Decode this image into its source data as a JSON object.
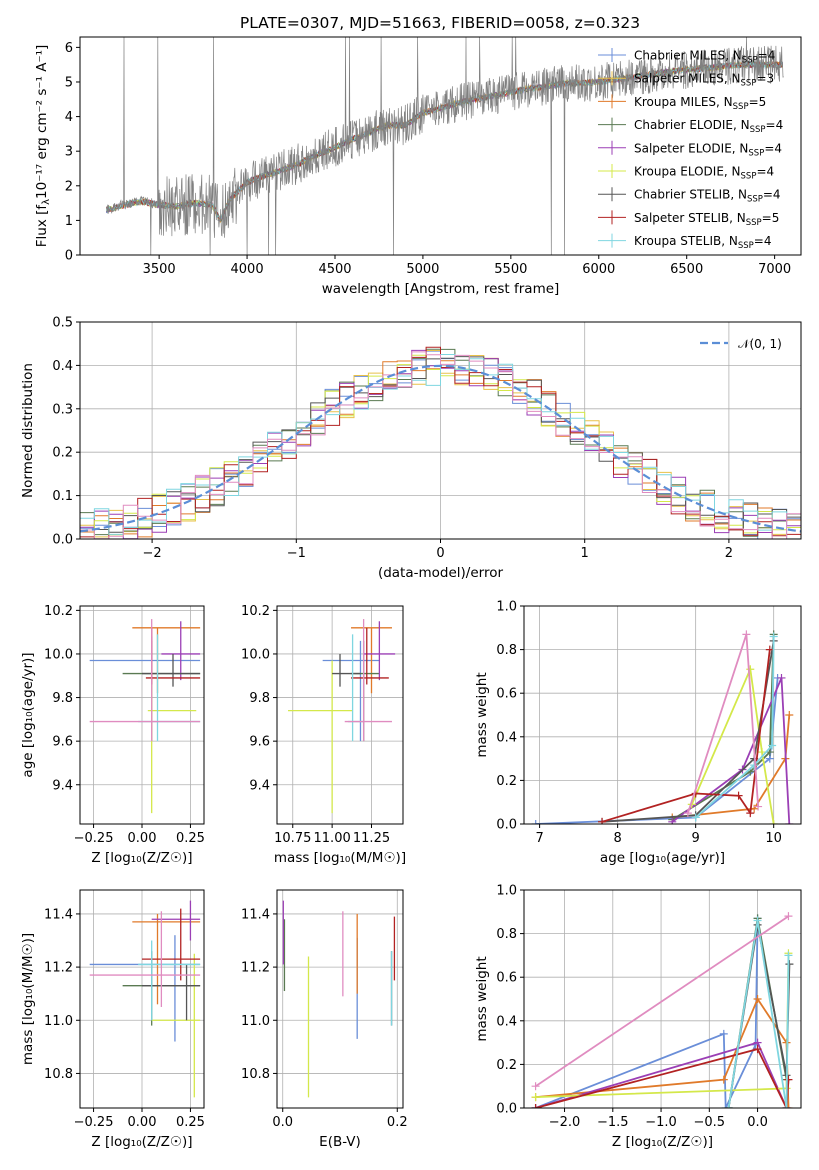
{
  "figure": {
    "title": "PLATE=0307, MJD=51663, FIBERID=0058, z=0.323"
  },
  "legend_entries": [
    {
      "name": "Chabrier MILES, N",
      "sub": "SSP",
      "suffix": "=4",
      "color": "#6a8ed8"
    },
    {
      "name": "Salpeter MILES, N",
      "sub": "SSP",
      "suffix": "=3",
      "color": "#e8c14a"
    },
    {
      "name": "Kroupa MILES, N",
      "sub": "SSP",
      "suffix": "=5",
      "color": "#e07a2a"
    },
    {
      "name": "Chabrier ELODIE, N",
      "sub": "SSP",
      "suffix": "=4",
      "color": "#5a7a52"
    },
    {
      "name": "Salpeter ELODIE, N",
      "sub": "SSP",
      "suffix": "=4",
      "color": "#9b3fb5"
    },
    {
      "name": "Kroupa ELODIE, N",
      "sub": "SSP",
      "suffix": "=4",
      "color": "#d4e84a"
    },
    {
      "name": "Chabrier STELIB, N",
      "sub": "SSP",
      "suffix": "=4",
      "color": "#555555"
    },
    {
      "name": "Salpeter STELIB, N",
      "sub": "SSP",
      "suffix": "=5",
      "color": "#b22222"
    },
    {
      "name": "Kroupa STELIB, N",
      "sub": "SSP",
      "suffix": "=4",
      "color": "#7fd6e0"
    }
  ],
  "colors": {
    "grid": "#b0b0b0",
    "spectrum_data": "#808080",
    "pink": "#e08cc0",
    "gaussian": "#5b8ed6"
  },
  "chart_data": [
    {
      "id": "spectrum",
      "type": "line",
      "title": "PLATE=0307, MJD=51663, FIBERID=0058, z=0.323",
      "xlabel": "wavelength [Angstrom, rest frame]",
      "ylabel_main": "Flux [f",
      "ylabel_sub": "λ",
      "ylabel_rest": "10⁻¹⁷ erg cm⁻² s⁻¹ A⁻¹]",
      "xlim": [
        3050,
        7150
      ],
      "ylim": [
        0,
        6.3
      ],
      "xticks": [
        3500,
        4000,
        4500,
        5000,
        5500,
        6000,
        6500,
        7000
      ],
      "yticks": [
        0,
        1,
        2,
        3,
        4,
        5,
        6
      ],
      "continuum_x": [
        3200,
        3300,
        3400,
        3500,
        3600,
        3700,
        3800,
        3850,
        3900,
        4000,
        4100,
        4200,
        4300,
        4400,
        4500,
        4600,
        4700,
        4800,
        4900,
        5000,
        5200,
        5400,
        5600,
        5800,
        6000,
        6200,
        6400,
        6600,
        6800,
        7000
      ],
      "continuum_y": [
        1.3,
        1.45,
        1.55,
        1.45,
        1.4,
        1.5,
        1.45,
        1.0,
        1.6,
        2.1,
        2.3,
        2.45,
        2.65,
        2.9,
        3.1,
        3.35,
        3.55,
        3.75,
        3.75,
        4.1,
        4.4,
        4.6,
        4.8,
        4.95,
        5.0,
        5.15,
        5.3,
        5.4,
        5.5,
        5.5
      ],
      "data_xrange": [
        3200,
        7050
      ],
      "grid": false
    },
    {
      "id": "residuals",
      "type": "histogram",
      "xlabel": "(data-model)/error",
      "ylabel": "Normed distribution",
      "xlim": [
        -2.5,
        2.5
      ],
      "ylim": [
        0,
        0.5
      ],
      "xticks": [
        -2,
        -1,
        0,
        1,
        2
      ],
      "xticklabels": [
        "−2",
        "−1",
        "0",
        "1",
        "2"
      ],
      "yticks": [
        0.0,
        0.1,
        0.2,
        0.3,
        0.4,
        0.5
      ],
      "yticklabels": [
        "0.0",
        "0.1",
        "0.2",
        "0.3",
        "0.4",
        "0.5"
      ],
      "legend_label": "𝒩(0, 1)",
      "bin_width": 0.1,
      "grid": true
    },
    {
      "id": "z-age",
      "type": "errorbar",
      "xlabel": "Z [log₁₀(Z/Z☉)]",
      "ylabel": "age  [log₁₀(age/yr)]",
      "xlim": [
        -0.32,
        0.32
      ],
      "ylim": [
        9.22,
        10.22
      ],
      "xticks": [
        -0.25,
        0.0,
        0.25
      ],
      "xticklabels": [
        "−0.25",
        "0.00",
        "0.25"
      ],
      "yticks": [
        9.4,
        9.6,
        9.8,
        10.0,
        10.2
      ],
      "yticklabels": [
        "9.4",
        "9.6",
        "9.8",
        "10.0",
        "10.2"
      ],
      "grid": true,
      "points": [
        {
          "x": 0.05,
          "xlo": -0.27,
          "xhi": 0.3,
          "y": 9.97,
          "ylo": 9.6,
          "yhi": 10.08,
          "c": "#6a8ed8"
        },
        {
          "x": 0.08,
          "xlo": -0.05,
          "xhi": 0.3,
          "y": 10.12,
          "ylo": 9.82,
          "yhi": 10.12,
          "c": "#e07a2a"
        },
        {
          "x": 0.05,
          "xlo": -0.1,
          "xhi": 0.3,
          "y": 9.91,
          "ylo": 9.6,
          "yhi": 10.06,
          "c": "#5a7a52"
        },
        {
          "x": 0.2,
          "xlo": 0.1,
          "xhi": 0.3,
          "y": 10.0,
          "ylo": 9.88,
          "yhi": 10.15,
          "c": "#9b3fb5"
        },
        {
          "x": 0.05,
          "xlo": 0.03,
          "xhi": 0.28,
          "y": 9.74,
          "ylo": 9.27,
          "yhi": 9.97,
          "c": "#d4e84a"
        },
        {
          "x": 0.16,
          "xlo": 0.0,
          "xhi": 0.3,
          "y": 9.91,
          "ylo": 9.85,
          "yhi": 10.0,
          "c": "#555555"
        },
        {
          "x": 0.05,
          "xlo": 0.02,
          "xhi": 0.3,
          "y": 9.89,
          "ylo": 9.86,
          "yhi": 10.12,
          "c": "#b22222"
        },
        {
          "x": 0.08,
          "xlo": -0.02,
          "xhi": 0.3,
          "y": 9.69,
          "ylo": 9.6,
          "yhi": 10.09,
          "c": "#7fd6e0"
        },
        {
          "x": 0.05,
          "xlo": -0.27,
          "xhi": 0.3,
          "y": 9.69,
          "ylo": 9.6,
          "yhi": 10.16,
          "c": "#e08cc0"
        }
      ]
    },
    {
      "id": "mass-age",
      "type": "errorbar",
      "xlabel": "mass [log₁₀(M/M☉)]",
      "xlim": [
        10.65,
        11.45
      ],
      "ylim": [
        9.22,
        10.22
      ],
      "xticks": [
        10.75,
        11.0,
        11.25
      ],
      "xticklabels": [
        "10.75",
        "11.00",
        "11.25"
      ],
      "yticks": [
        9.4,
        9.6,
        9.8,
        10.0,
        10.2
      ],
      "yticklabels": [
        "9.4",
        "9.6",
        "9.8",
        "10.0",
        "10.2"
      ],
      "grid": true,
      "points": [
        {
          "x": 11.18,
          "xlo": 10.94,
          "xhi": 11.3,
          "y": 9.97,
          "ylo": 9.6,
          "yhi": 10.06,
          "c": "#6a8ed8"
        },
        {
          "x": 11.25,
          "xlo": 11.12,
          "xhi": 11.38,
          "y": 10.12,
          "ylo": 9.82,
          "yhi": 10.12,
          "c": "#e07a2a"
        },
        {
          "x": 11.2,
          "xlo": 11.12,
          "xhi": 11.3,
          "y": 9.91,
          "ylo": 9.6,
          "yhi": 10.06,
          "c": "#5a7a52"
        },
        {
          "x": 11.3,
          "xlo": 11.2,
          "xhi": 11.4,
          "y": 10.0,
          "ylo": 9.88,
          "yhi": 10.15,
          "c": "#9b3fb5"
        },
        {
          "x": 11.0,
          "xlo": 10.72,
          "xhi": 11.13,
          "y": 9.74,
          "ylo": 9.27,
          "yhi": 9.97,
          "c": "#d4e84a"
        },
        {
          "x": 11.05,
          "xlo": 11.0,
          "xhi": 11.18,
          "y": 9.91,
          "ylo": 9.85,
          "yhi": 10.0,
          "c": "#555555"
        },
        {
          "x": 11.22,
          "xlo": 11.12,
          "xhi": 11.36,
          "y": 9.89,
          "ylo": 9.86,
          "yhi": 10.12,
          "c": "#b22222"
        },
        {
          "x": 11.13,
          "xlo": 11.1,
          "xhi": 11.2,
          "y": 9.69,
          "ylo": 9.6,
          "yhi": 10.09,
          "c": "#7fd6e0"
        },
        {
          "x": 11.2,
          "xlo": 11.08,
          "xhi": 11.38,
          "y": 9.69,
          "ylo": 9.6,
          "yhi": 10.16,
          "c": "#e08cc0"
        }
      ]
    },
    {
      "id": "age-weight",
      "type": "line",
      "xlabel": "age  [log₁₀(age/yr)]",
      "ylabel": "mass weight",
      "xlim": [
        6.8,
        10.35
      ],
      "ylim": [
        0,
        1
      ],
      "xticks": [
        7,
        8,
        9,
        10
      ],
      "xticklabels": [
        "7",
        "8",
        "9",
        "10"
      ],
      "yticks": [
        0.0,
        0.2,
        0.4,
        0.6,
        0.8,
        1.0
      ],
      "yticklabels": [
        "0.0",
        "0.2",
        "0.4",
        "0.6",
        "0.8",
        "1.0"
      ],
      "grid": true,
      "series": [
        {
          "c": "#6a8ed8",
          "x": [
            6.95,
            9.0,
            9.95,
            10.05
          ],
          "y": [
            0.0,
            0.03,
            0.3,
            0.67
          ]
        },
        {
          "c": "#e07a2a",
          "x": [
            8.7,
            9.75,
            10.15,
            10.2
          ],
          "y": [
            0.03,
            0.07,
            0.3,
            0.5
          ]
        },
        {
          "c": "#5a7a52",
          "x": [
            8.7,
            9.7,
            9.95,
            10.0
          ],
          "y": [
            0.02,
            0.24,
            0.33,
            0.87
          ]
        },
        {
          "c": "#9b3fb5",
          "x": [
            8.7,
            9.6,
            10.1,
            10.2
          ],
          "y": [
            0.01,
            0.25,
            0.67,
            0.0
          ]
        },
        {
          "c": "#d4e84a",
          "x": [
            8.95,
            9.7,
            9.85,
            10.0
          ],
          "y": [
            0.09,
            0.71,
            0.33,
            0.0
          ]
        },
        {
          "c": "#555555",
          "x": [
            7.8,
            9.0,
            9.75,
            10.0
          ],
          "y": [
            0.01,
            0.04,
            0.3,
            0.84
          ]
        },
        {
          "c": "#b22222",
          "x": [
            7.8,
            9.0,
            9.55,
            9.7,
            9.95
          ],
          "y": [
            0.01,
            0.14,
            0.13,
            0.05,
            0.8
          ]
        },
        {
          "c": "#7fd6e0",
          "x": [
            9.0,
            9.75,
            9.98,
            10.0
          ],
          "y": [
            0.03,
            0.27,
            0.36,
            0.86
          ]
        },
        {
          "c": "#e08cc0",
          "x": [
            8.9,
            9.65,
            9.8
          ],
          "y": [
            0.05,
            0.87,
            0.08
          ]
        }
      ]
    },
    {
      "id": "z-mass",
      "type": "errorbar",
      "xlabel": "Z [log₁₀(Z/Z☉)]",
      "ylabel": "mass [log₁₀(M/M☉)]",
      "xlim": [
        -0.32,
        0.32
      ],
      "ylim": [
        10.67,
        11.49
      ],
      "xticks": [
        -0.25,
        0.0,
        0.25
      ],
      "xticklabels": [
        "−0.25",
        "0.00",
        "0.25"
      ],
      "yticks": [
        10.8,
        11.0,
        11.2,
        11.4
      ],
      "yticklabels": [
        "10.8",
        "11.0",
        "11.2",
        "11.4"
      ],
      "grid": true,
      "points": [
        {
          "x": 0.17,
          "xlo": -0.27,
          "xhi": 0.3,
          "y": 11.21,
          "ylo": 10.92,
          "yhi": 11.32,
          "c": "#6a8ed8"
        },
        {
          "x": 0.08,
          "xlo": -0.05,
          "xhi": 0.3,
          "y": 11.37,
          "ylo": 11.06,
          "yhi": 11.4,
          "c": "#e07a2a"
        },
        {
          "x": 0.05,
          "xlo": -0.1,
          "xhi": 0.3,
          "y": 11.13,
          "ylo": 10.98,
          "yhi": 11.26,
          "c": "#5a7a52"
        },
        {
          "x": 0.25,
          "xlo": 0.05,
          "xhi": 0.3,
          "y": 11.38,
          "ylo": 11.3,
          "yhi": 11.45,
          "c": "#9b3fb5"
        },
        {
          "x": 0.27,
          "xlo": 0.05,
          "xhi": 0.3,
          "y": 11.0,
          "ylo": 10.71,
          "yhi": 11.25,
          "c": "#d4e84a"
        },
        {
          "x": 0.23,
          "xlo": 0.0,
          "xhi": 0.3,
          "y": 11.13,
          "ylo": 11.0,
          "yhi": 11.21,
          "c": "#555555"
        },
        {
          "x": 0.2,
          "xlo": 0.0,
          "xhi": 0.3,
          "y": 11.23,
          "ylo": 11.15,
          "yhi": 11.42,
          "c": "#b22222"
        },
        {
          "x": 0.05,
          "xlo": -0.02,
          "xhi": 0.3,
          "y": 11.21,
          "ylo": 11.0,
          "yhi": 11.3,
          "c": "#7fd6e0"
        },
        {
          "x": 0.1,
          "xlo": -0.27,
          "xhi": 0.3,
          "y": 11.17,
          "ylo": 11.05,
          "yhi": 11.41,
          "c": "#e08cc0"
        }
      ]
    },
    {
      "id": "ebv-mass",
      "type": "errorbar",
      "xlabel": "E(B-V)",
      "xlim": [
        -0.01,
        0.21
      ],
      "ylim": [
        10.67,
        11.49
      ],
      "xticks": [
        0.0,
        0.2
      ],
      "xticklabels": [
        "0.0",
        "0.2"
      ],
      "yticks": [
        10.8,
        11.0,
        11.2,
        11.4
      ],
      "yticklabels": [
        "10.8",
        "11.0",
        "11.2",
        "11.4"
      ],
      "grid": true,
      "points": [
        {
          "x": 0.13,
          "y": 11.2,
          "ylo": 10.93,
          "yhi": 11.31,
          "c": "#6a8ed8"
        },
        {
          "x": 0.13,
          "y": 11.25,
          "ylo": 11.1,
          "yhi": 11.4,
          "c": "#e07a2a"
        },
        {
          "x": 0.003,
          "y": 11.3,
          "ylo": 11.11,
          "yhi": 11.38,
          "c": "#5a7a52"
        },
        {
          "x": 0.001,
          "y": 11.35,
          "ylo": 11.21,
          "yhi": 11.45,
          "c": "#9b3fb5"
        },
        {
          "x": 0.045,
          "y": 11.0,
          "ylo": 10.71,
          "yhi": 11.24,
          "c": "#d4e84a"
        },
        {
          "x": 0.19,
          "y": 11.12,
          "ylo": 10.98,
          "yhi": 11.26,
          "c": "#555555"
        },
        {
          "x": 0.195,
          "y": 11.25,
          "ylo": 11.15,
          "yhi": 11.39,
          "c": "#b22222"
        },
        {
          "x": 0.19,
          "y": 11.15,
          "ylo": 10.98,
          "yhi": 11.26,
          "c": "#7fd6e0"
        },
        {
          "x": 0.105,
          "y": 11.25,
          "ylo": 11.09,
          "yhi": 11.41,
          "c": "#e08cc0"
        }
      ]
    },
    {
      "id": "z-weight",
      "type": "line",
      "xlabel": "Z [log₁₀(Z/Z☉)]",
      "ylabel": "mass weight",
      "xlim": [
        -2.42,
        0.45
      ],
      "ylim": [
        0,
        1
      ],
      "xticks": [
        -2.0,
        -1.5,
        -1.0,
        -0.5,
        0.0
      ],
      "xticklabels": [
        "−2.0",
        "−1.5",
        "−1.0",
        "−0.5",
        "0.0"
      ],
      "yticks": [
        0.0,
        0.2,
        0.4,
        0.6,
        0.8,
        1.0
      ],
      "yticklabels": [
        "0.0",
        "0.2",
        "0.4",
        "0.6",
        "0.8",
        "1.0"
      ],
      "grid": true,
      "series": [
        {
          "c": "#6a8ed8",
          "x": [
            -2.3,
            -0.35,
            -0.33,
            -0.02,
            0.0
          ],
          "y": [
            0.0,
            0.34,
            0.0,
            0.29,
            0.87
          ]
        },
        {
          "c": "#e07a2a",
          "x": [
            -2.3,
            -0.35,
            0.0,
            0.3,
            0.32
          ],
          "y": [
            0.05,
            0.13,
            0.5,
            0.3,
            0.0
          ]
        },
        {
          "c": "#5a7a52",
          "x": [
            -0.3,
            0.0,
            0.3
          ],
          "y": [
            0.0,
            0.87,
            0.13
          ]
        },
        {
          "c": "#9b3fb5",
          "x": [
            -2.3,
            0.0,
            0.3
          ],
          "y": [
            0.0,
            0.3,
            0.0
          ]
        },
        {
          "c": "#d4e84a",
          "x": [
            -2.3,
            0.3,
            0.32
          ],
          "y": [
            0.05,
            0.09,
            0.71
          ]
        },
        {
          "c": "#555555",
          "x": [
            -0.3,
            0.0,
            0.3,
            0.33
          ],
          "y": [
            0.0,
            0.84,
            0.15,
            0.66
          ]
        },
        {
          "c": "#b22222",
          "x": [
            -2.3,
            0.0,
            0.3,
            0.32
          ],
          "y": [
            0.0,
            0.27,
            0.0,
            0.13
          ]
        },
        {
          "c": "#7fd6e0",
          "x": [
            -0.3,
            0.0,
            0.3,
            0.32
          ],
          "y": [
            0.0,
            0.86,
            0.0,
            0.7
          ]
        },
        {
          "c": "#e08cc0",
          "x": [
            -2.3,
            0.32
          ],
          "y": [
            0.1,
            0.88
          ]
        }
      ]
    }
  ]
}
